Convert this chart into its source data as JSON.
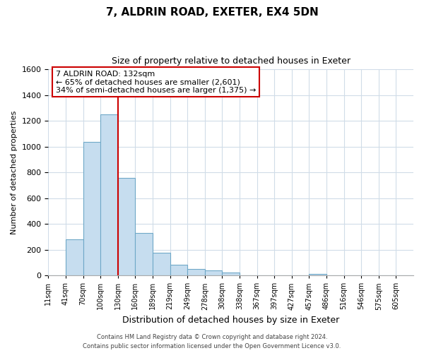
{
  "title": "7, ALDRIN ROAD, EXETER, EX4 5DN",
  "subtitle": "Size of property relative to detached houses in Exeter",
  "xlabel": "Distribution of detached houses by size in Exeter",
  "ylabel": "Number of detached properties",
  "bar_labels": [
    "11sqm",
    "41sqm",
    "70sqm",
    "100sqm",
    "130sqm",
    "160sqm",
    "189sqm",
    "219sqm",
    "249sqm",
    "278sqm",
    "308sqm",
    "338sqm",
    "367sqm",
    "397sqm",
    "427sqm",
    "457sqm",
    "486sqm",
    "516sqm",
    "546sqm",
    "575sqm",
    "605sqm"
  ],
  "bar_values": [
    0,
    280,
    1035,
    1250,
    760,
    330,
    175,
    85,
    50,
    37,
    20,
    0,
    0,
    0,
    0,
    10,
    0,
    0,
    0,
    0,
    0
  ],
  "bar_color": "#c6ddef",
  "bar_edge_color": "#6fa8c8",
  "vline_x_index": 4,
  "vline_color": "#cc0000",
  "annotation_title": "7 ALDRIN ROAD: 132sqm",
  "annotation_line1": "← 65% of detached houses are smaller (2,601)",
  "annotation_line2": "34% of semi-detached houses are larger (1,375) →",
  "annotation_box_color": "#ffffff",
  "annotation_box_edge": "#cc0000",
  "ylim": [
    0,
    1600
  ],
  "yticks": [
    0,
    200,
    400,
    600,
    800,
    1000,
    1200,
    1400,
    1600
  ],
  "footer_line1": "Contains HM Land Registry data © Crown copyright and database right 2024.",
  "footer_line2": "Contains public sector information licensed under the Open Government Licence v3.0.",
  "background_color": "#ffffff",
  "grid_color": "#d0dce8",
  "title_fontsize": 11,
  "subtitle_fontsize": 9,
  "xlabel_fontsize": 9,
  "ylabel_fontsize": 8,
  "ytick_fontsize": 8,
  "xtick_fontsize": 7,
  "annotation_fontsize": 8,
  "footer_fontsize": 6
}
